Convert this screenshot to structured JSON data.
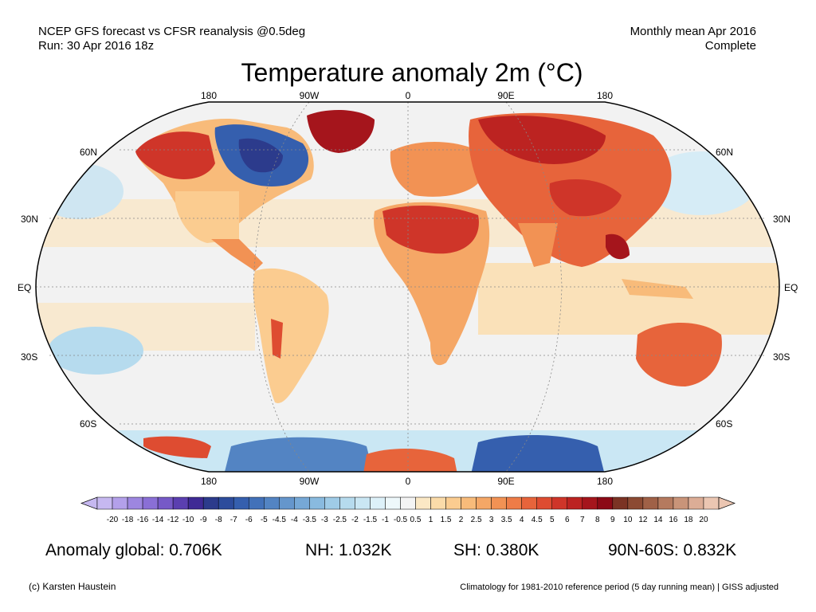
{
  "header": {
    "line1": "NCEP GFS forecast vs CFSR reanalysis @0.5deg",
    "line2": "Run: 30 Apr 2016 18z",
    "right1": "Monthly mean Apr 2016",
    "right2": "Complete"
  },
  "title": "Temperature anomaly 2m (°C)",
  "map": {
    "projection": "robinson",
    "lon_labels_top": [
      "180",
      "90W",
      "0",
      "90E",
      "180"
    ],
    "lon_labels_bottom": [
      "180",
      "90W",
      "0",
      "90E",
      "180"
    ],
    "lat_labels_left": [
      "60N",
      "30N",
      "EQ",
      "30S",
      "60S"
    ],
    "lat_labels_right": [
      "60N",
      "30N",
      "EQ",
      "30S",
      "60S"
    ],
    "colors": {
      "ocean_neutral": "#f2f2f2",
      "border": "#000000",
      "gridline": "#888888"
    },
    "anomaly_regions": [
      {
        "region": "Greenland",
        "color": "#a11d1d"
      },
      {
        "region": "Alaska",
        "color": "#c9302a"
      },
      {
        "region": "Northeast Canada",
        "color": "#2d5fa8"
      },
      {
        "region": "Siberia",
        "color": "#c9302a"
      },
      {
        "region": "North Africa",
        "color": "#c9302a"
      },
      {
        "region": "Tibet / China",
        "color": "#c9302a"
      },
      {
        "region": "Southeast Asia",
        "color": "#b2241f"
      },
      {
        "region": "Australia",
        "color": "#e0553b"
      },
      {
        "region": "Antarctica coast",
        "color": "#3f74b8"
      },
      {
        "region": "Weddell Sea",
        "color": "#e0553b"
      }
    ]
  },
  "colorbar": {
    "labels": [
      "-20",
      "-18",
      "-16",
      "-14",
      "-12",
      "-10",
      "-9",
      "-8",
      "-7",
      "-6",
      "-5",
      "-4.5",
      "-4",
      "-3.5",
      "-3",
      "-2.5",
      "-2",
      "-1.5",
      "-1",
      "-0.5",
      "0.5",
      "1",
      "1.5",
      "2",
      "2.5",
      "3",
      "3.5",
      "4",
      "4.5",
      "5",
      "6",
      "7",
      "8",
      "9",
      "10",
      "12",
      "14",
      "16",
      "18",
      "20"
    ],
    "colors": [
      "#c6b8f0",
      "#b3a0ea",
      "#9d86e0",
      "#8a6fd6",
      "#7659c7",
      "#5b3fb0",
      "#3f2a95",
      "#2c3b8c",
      "#2d4c9c",
      "#355fae",
      "#4271b9",
      "#5384c3",
      "#6596cc",
      "#76a8d6",
      "#89badf",
      "#9fcbe7",
      "#b6dbee",
      "#cae7f4",
      "#ddf1f9",
      "#eef8fb",
      "#f4f4f4",
      "#fbe8c5",
      "#fbdba9",
      "#fbcc90",
      "#f8bb7a",
      "#f5a766",
      "#f29254",
      "#ee7c47",
      "#e7643b",
      "#de4c31",
      "#cf3529",
      "#bc2321",
      "#a5151c",
      "#8c0a16",
      "#7b3324",
      "#8c4a33",
      "#a06147",
      "#b57a5f",
      "#c99479",
      "#dcad96",
      "#ebc6b2"
    ]
  },
  "stats": {
    "global": "Anomaly global: 0.706K",
    "nh": "NH: 1.032K",
    "sh": "SH: 0.380K",
    "arctic": "90N-60S: 0.832K"
  },
  "footer": {
    "left": "(c) Karsten Haustein",
    "right": "Climatology for 1981-2010 reference period (5 day running mean) | GISS adjusted"
  }
}
